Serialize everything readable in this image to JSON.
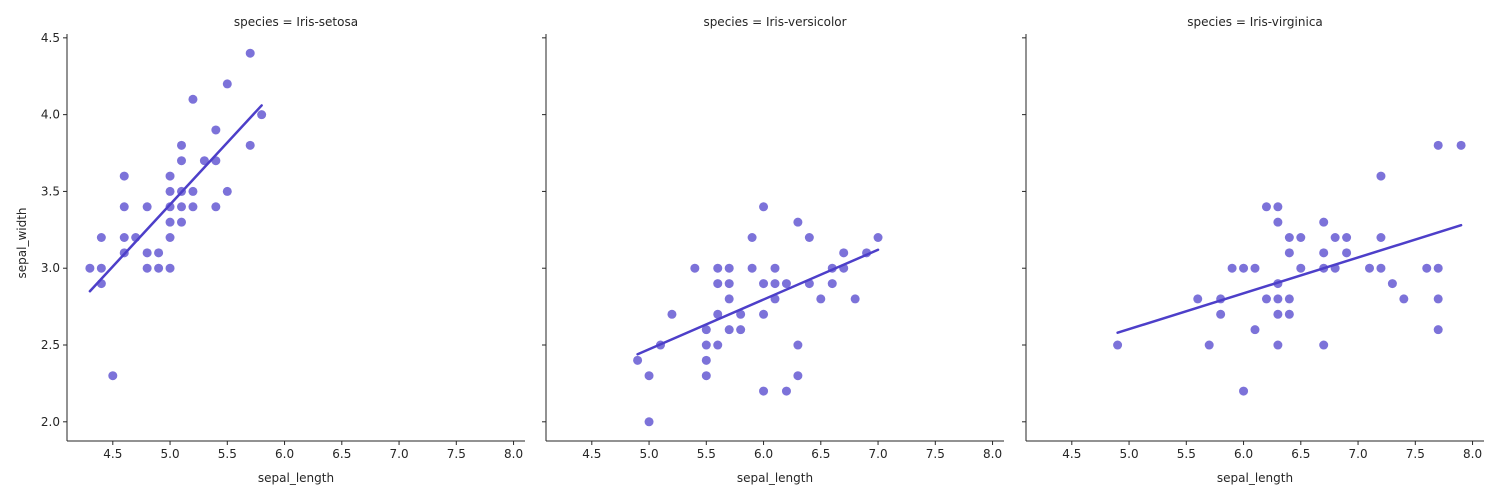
{
  "chart_data": {
    "type": "scatter",
    "layout": "facet-columns",
    "xlabel": "sepal_length",
    "ylabel": "sepal_width",
    "xlim": [
      4.1,
      8.1
    ],
    "ylim": [
      1.875,
      4.525
    ],
    "xticks": [
      "4.5",
      "5.0",
      "5.5",
      "6.0",
      "6.5",
      "7.0",
      "7.5",
      "8.0"
    ],
    "yticks": [
      "2.0",
      "2.5",
      "3.0",
      "3.5",
      "4.0",
      "4.5"
    ],
    "grid": false,
    "colors": {
      "point": "#5b4fcf",
      "line": "#4d3fc9",
      "axis": "#262626"
    },
    "panels": [
      {
        "title": "species = Iris-setosa",
        "regression": {
          "x": [
            4.3,
            5.8
          ],
          "y": [
            2.85,
            4.06
          ]
        },
        "points": [
          [
            4.3,
            3.0
          ],
          [
            4.4,
            2.9
          ],
          [
            4.4,
            3.0
          ],
          [
            4.4,
            3.2
          ],
          [
            4.5,
            2.3
          ],
          [
            4.6,
            3.1
          ],
          [
            4.6,
            3.2
          ],
          [
            4.6,
            3.4
          ],
          [
            4.6,
            3.6
          ],
          [
            4.7,
            3.2
          ],
          [
            4.8,
            3.0
          ],
          [
            4.8,
            3.1
          ],
          [
            4.8,
            3.4
          ],
          [
            4.9,
            3.0
          ],
          [
            4.9,
            3.1
          ],
          [
            5.0,
            3.0
          ],
          [
            5.0,
            3.2
          ],
          [
            5.0,
            3.3
          ],
          [
            5.0,
            3.4
          ],
          [
            5.0,
            3.5
          ],
          [
            5.0,
            3.6
          ],
          [
            5.1,
            3.3
          ],
          [
            5.1,
            3.4
          ],
          [
            5.1,
            3.5
          ],
          [
            5.1,
            3.7
          ],
          [
            5.1,
            3.8
          ],
          [
            5.2,
            3.4
          ],
          [
            5.2,
            3.5
          ],
          [
            5.2,
            4.1
          ],
          [
            5.3,
            3.7
          ],
          [
            5.4,
            3.4
          ],
          [
            5.4,
            3.7
          ],
          [
            5.4,
            3.9
          ],
          [
            5.5,
            3.5
          ],
          [
            5.5,
            4.2
          ],
          [
            5.7,
            3.8
          ],
          [
            5.7,
            4.4
          ],
          [
            5.8,
            4.0
          ]
        ]
      },
      {
        "title": "species = Iris-versicolor",
        "regression": {
          "x": [
            4.9,
            7.0
          ],
          "y": [
            2.44,
            3.12
          ]
        },
        "points": [
          [
            4.9,
            2.4
          ],
          [
            5.0,
            2.0
          ],
          [
            5.0,
            2.3
          ],
          [
            5.1,
            2.5
          ],
          [
            5.2,
            2.7
          ],
          [
            5.4,
            3.0
          ],
          [
            5.5,
            2.3
          ],
          [
            5.5,
            2.4
          ],
          [
            5.5,
            2.5
          ],
          [
            5.5,
            2.6
          ],
          [
            5.6,
            2.5
          ],
          [
            5.6,
            2.7
          ],
          [
            5.6,
            2.9
          ],
          [
            5.6,
            3.0
          ],
          [
            5.7,
            2.6
          ],
          [
            5.7,
            2.8
          ],
          [
            5.7,
            2.9
          ],
          [
            5.7,
            3.0
          ],
          [
            5.8,
            2.6
          ],
          [
            5.8,
            2.7
          ],
          [
            5.9,
            3.0
          ],
          [
            5.9,
            3.2
          ],
          [
            6.0,
            2.2
          ],
          [
            6.0,
            2.7
          ],
          [
            6.0,
            2.9
          ],
          [
            6.0,
            3.4
          ],
          [
            6.1,
            2.8
          ],
          [
            6.1,
            2.9
          ],
          [
            6.1,
            3.0
          ],
          [
            6.2,
            2.2
          ],
          [
            6.2,
            2.9
          ],
          [
            6.3,
            2.3
          ],
          [
            6.3,
            2.5
          ],
          [
            6.3,
            3.3
          ],
          [
            6.4,
            2.9
          ],
          [
            6.4,
            3.2
          ],
          [
            6.5,
            2.8
          ],
          [
            6.6,
            2.9
          ],
          [
            6.6,
            3.0
          ],
          [
            6.7,
            3.0
          ],
          [
            6.7,
            3.1
          ],
          [
            6.8,
            2.8
          ],
          [
            6.9,
            3.1
          ],
          [
            7.0,
            3.2
          ]
        ]
      },
      {
        "title": "species = Iris-virginica",
        "regression": {
          "x": [
            4.9,
            7.9
          ],
          "y": [
            2.58,
            3.28
          ]
        },
        "points": [
          [
            4.9,
            2.5
          ],
          [
            5.6,
            2.8
          ],
          [
            5.7,
            2.5
          ],
          [
            5.8,
            2.7
          ],
          [
            5.8,
            2.8
          ],
          [
            5.9,
            3.0
          ],
          [
            6.0,
            2.2
          ],
          [
            6.0,
            3.0
          ],
          [
            6.1,
            2.6
          ],
          [
            6.1,
            3.0
          ],
          [
            6.2,
            2.8
          ],
          [
            6.2,
            3.4
          ],
          [
            6.3,
            2.5
          ],
          [
            6.3,
            2.7
          ],
          [
            6.3,
            2.8
          ],
          [
            6.3,
            2.9
          ],
          [
            6.3,
            3.3
          ],
          [
            6.3,
            3.4
          ],
          [
            6.4,
            2.7
          ],
          [
            6.4,
            2.8
          ],
          [
            6.4,
            3.1
          ],
          [
            6.4,
            3.2
          ],
          [
            6.5,
            3.0
          ],
          [
            6.5,
            3.2
          ],
          [
            6.7,
            2.5
          ],
          [
            6.7,
            3.0
          ],
          [
            6.7,
            3.1
          ],
          [
            6.7,
            3.3
          ],
          [
            6.8,
            3.0
          ],
          [
            6.8,
            3.2
          ],
          [
            6.9,
            3.1
          ],
          [
            6.9,
            3.2
          ],
          [
            7.1,
            3.0
          ],
          [
            7.2,
            3.0
          ],
          [
            7.2,
            3.2
          ],
          [
            7.2,
            3.6
          ],
          [
            7.3,
            2.9
          ],
          [
            7.4,
            2.8
          ],
          [
            7.6,
            3.0
          ],
          [
            7.7,
            2.6
          ],
          [
            7.7,
            2.8
          ],
          [
            7.7,
            3.0
          ],
          [
            7.7,
            3.8
          ],
          [
            7.9,
            3.8
          ]
        ]
      }
    ]
  }
}
